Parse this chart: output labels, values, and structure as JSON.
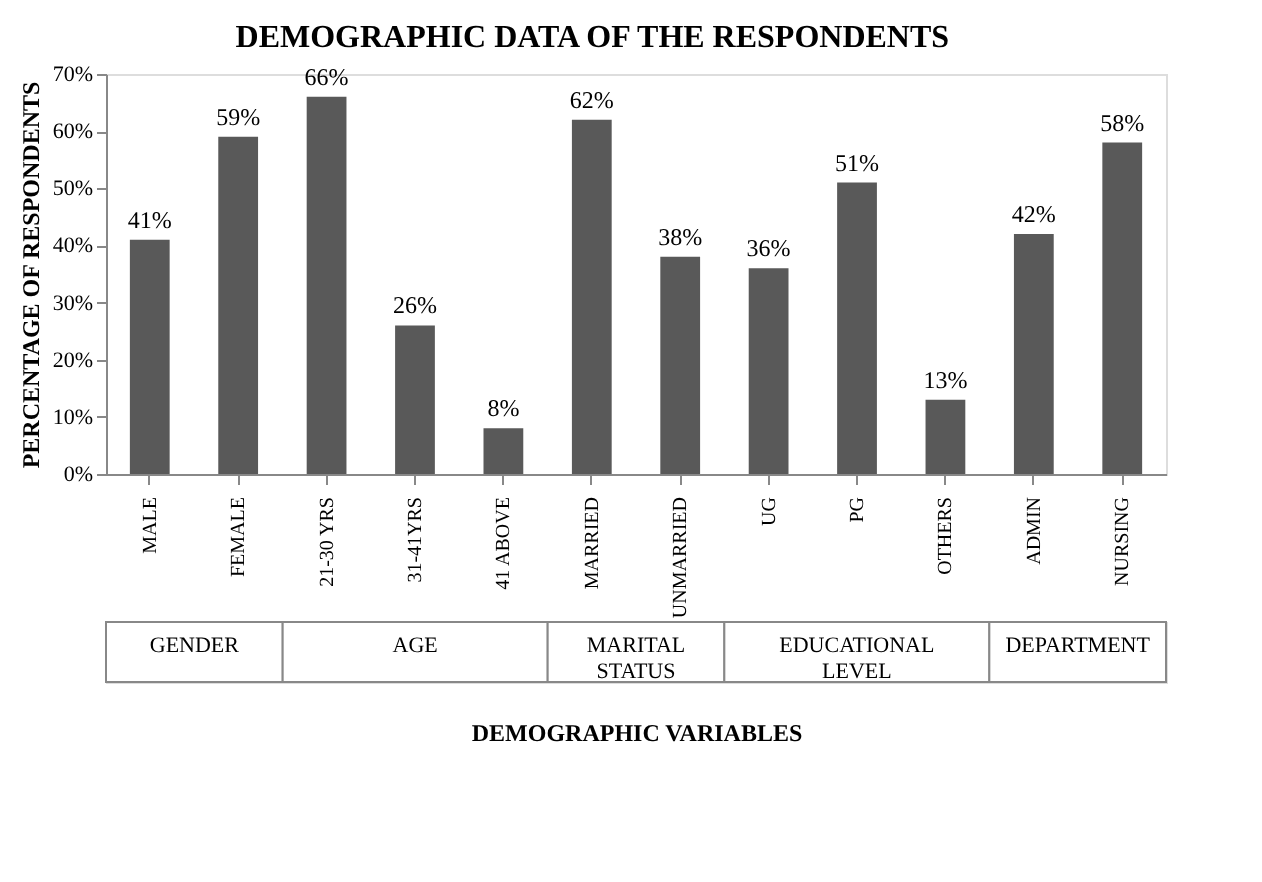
{
  "chart_data": {
    "type": "bar",
    "title": "DEMOGRAPHIC  DATA OF THE RESPONDENTS",
    "xlabel": "DEMOGRAPHIC VARIABLES",
    "ylabel": "PERCENTAGE OF RESPONDENTS",
    "categories": [
      "MALE",
      "FEMALE",
      "21-30 YRS",
      "31-41YRS",
      "41 ABOVE",
      "MARRIED",
      "UNMARRIED",
      "UG",
      "PG",
      "OTHERS",
      "ADMIN",
      "NURSING"
    ],
    "values": [
      41,
      59,
      66,
      26,
      8,
      62,
      38,
      36,
      51,
      13,
      42,
      58
    ],
    "value_labels": [
      "41%",
      "59%",
      "66%",
      "26%",
      "8%",
      "62%",
      "38%",
      "36%",
      "51%",
      "13%",
      "42%",
      "58%"
    ],
    "color": "#595959",
    "ylim": [
      0,
      70
    ],
    "yticks": [
      {
        "value": 0,
        "label": "0%"
      },
      {
        "value": 10,
        "label": "10%"
      },
      {
        "value": 20,
        "label": "20%"
      },
      {
        "value": 30,
        "label": "30%"
      },
      {
        "value": 40,
        "label": "40%"
      },
      {
        "value": 50,
        "label": "50%"
      },
      {
        "value": 60,
        "label": "60%"
      },
      {
        "value": 70,
        "label": "70%"
      }
    ],
    "annotations": [
      "GENDER",
      "AGE",
      "MARITAL STATUS",
      "EDUCATIONAL LEVEL",
      "DEPARTMENT"
    ],
    "grid": false
  }
}
